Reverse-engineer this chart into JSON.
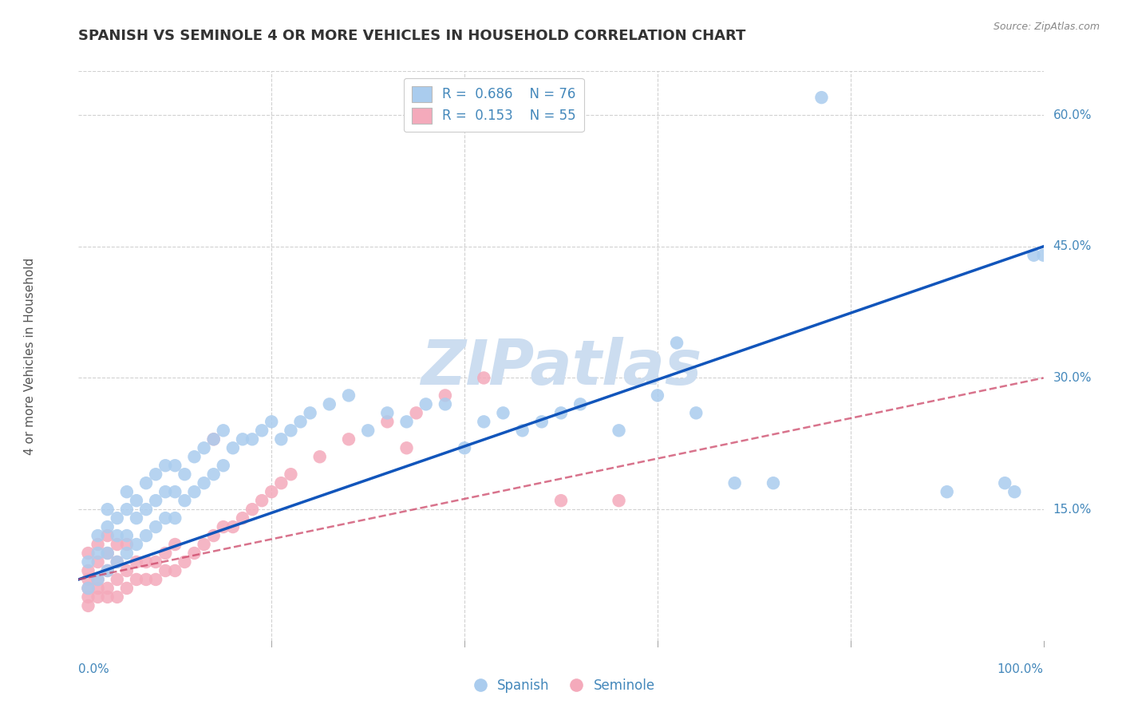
{
  "title": "SPANISH VS SEMINOLE 4 OR MORE VEHICLES IN HOUSEHOLD CORRELATION CHART",
  "source": "Source: ZipAtlas.com",
  "ylabel": "4 or more Vehicles in Household",
  "xlim": [
    0,
    100
  ],
  "ylim": [
    0,
    65
  ],
  "ytick_positions": [
    15,
    30,
    45,
    60
  ],
  "ytick_labels": [
    "15.0%",
    "30.0%",
    "45.0%",
    "60.0%"
  ],
  "legend_entries": [
    {
      "label": "R =  0.686    N = 76",
      "color": "#aaccee"
    },
    {
      "label": "R =  0.153    N = 55",
      "color": "#f4aabb"
    }
  ],
  "legend_bottom": [
    "Spanish",
    "Seminole"
  ],
  "watermark": "ZIPatlas",
  "watermark_color": "#ccddf0",
  "background_color": "#ffffff",
  "grid_color": "#cccccc",
  "title_color": "#333333",
  "title_fontsize": 13,
  "axis_label_color": "#555555",
  "tick_label_color": "#4488bb",
  "blue_scatter_color": "#aaccee",
  "pink_scatter_color": "#f4aabb",
  "blue_line_color": "#1155bb",
  "pink_line_color": "#cc4466",
  "blue_line_x0": 0,
  "blue_line_x1": 100,
  "blue_line_y0": 7,
  "blue_line_y1": 45,
  "pink_line_x0": 0,
  "pink_line_x1": 100,
  "pink_line_y0": 7,
  "pink_line_y1": 30,
  "blue_x": [
    1,
    1,
    2,
    2,
    2,
    3,
    3,
    3,
    3,
    4,
    4,
    4,
    5,
    5,
    5,
    5,
    6,
    6,
    6,
    7,
    7,
    7,
    8,
    8,
    8,
    9,
    9,
    9,
    10,
    10,
    10,
    11,
    11,
    12,
    12,
    13,
    13,
    14,
    14,
    15,
    15,
    16,
    17,
    18,
    19,
    20,
    21,
    22,
    23,
    24,
    26,
    28,
    30,
    32,
    34,
    36,
    38,
    40,
    42,
    44,
    46,
    48,
    50,
    52,
    56,
    60,
    62,
    64,
    68,
    72,
    77,
    90,
    96,
    97,
    99,
    100
  ],
  "blue_y": [
    6,
    9,
    7,
    10,
    12,
    8,
    10,
    13,
    15,
    9,
    12,
    14,
    10,
    12,
    15,
    17,
    11,
    14,
    16,
    12,
    15,
    18,
    13,
    16,
    19,
    14,
    17,
    20,
    14,
    17,
    20,
    16,
    19,
    17,
    21,
    18,
    22,
    19,
    23,
    20,
    24,
    22,
    23,
    23,
    24,
    25,
    23,
    24,
    25,
    26,
    27,
    28,
    24,
    26,
    25,
    27,
    27,
    22,
    25,
    26,
    24,
    25,
    26,
    27,
    24,
    28,
    34,
    26,
    18,
    18,
    62,
    17,
    18,
    17,
    44,
    44
  ],
  "pink_x": [
    1,
    1,
    1,
    1,
    1,
    1,
    2,
    2,
    2,
    2,
    2,
    3,
    3,
    3,
    3,
    3,
    4,
    4,
    4,
    4,
    5,
    5,
    5,
    6,
    6,
    7,
    7,
    8,
    8,
    9,
    9,
    10,
    10,
    11,
    12,
    13,
    14,
    15,
    16,
    17,
    18,
    19,
    20,
    21,
    22,
    25,
    28,
    32,
    35,
    38,
    42,
    50,
    56,
    34,
    14
  ],
  "pink_y": [
    4,
    5,
    6,
    7,
    8,
    10,
    5,
    6,
    7,
    9,
    11,
    5,
    6,
    8,
    10,
    12,
    5,
    7,
    9,
    11,
    6,
    8,
    11,
    7,
    9,
    7,
    9,
    7,
    9,
    8,
    10,
    8,
    11,
    9,
    10,
    11,
    12,
    13,
    13,
    14,
    15,
    16,
    17,
    18,
    19,
    21,
    23,
    25,
    26,
    28,
    30,
    16,
    16,
    22,
    23
  ]
}
